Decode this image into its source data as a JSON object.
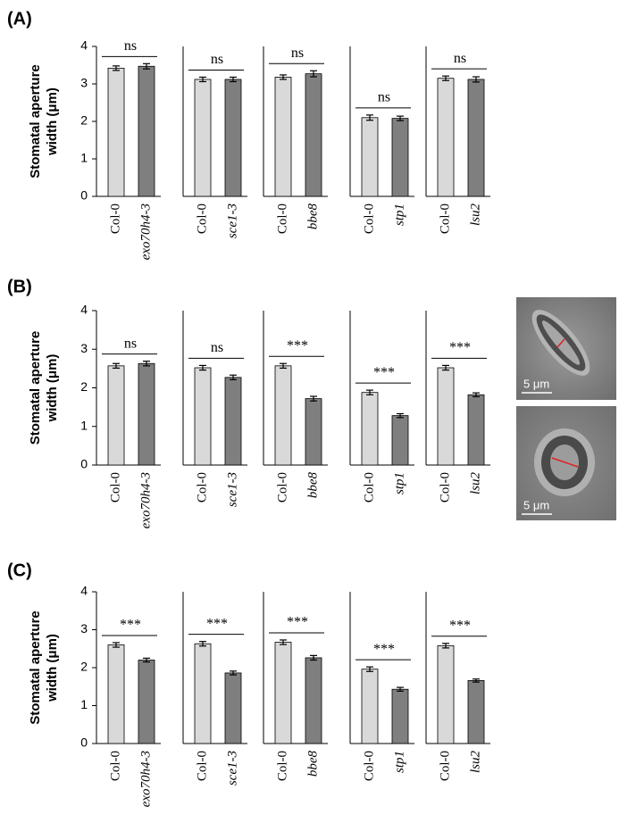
{
  "chart_data": [
    {
      "type": "bar",
      "panel_label": "(A)",
      "y_label": [
        "Stomatal aperture",
        "width (μm)"
      ],
      "categories": [
        "Col-0",
        "exo70h4-3"
      ],
      "values": [
        3.42,
        3.47
      ],
      "errors": [
        0.06,
        0.07
      ],
      "colors": [
        "#d9d9d9",
        "#7f7f7f"
      ],
      "significance": "ns",
      "ylim": [
        0,
        4
      ],
      "yticks": [
        0,
        1,
        2,
        3,
        4
      ]
    },
    {
      "type": "bar",
      "categories": [
        "Col-0",
        "sce1-3"
      ],
      "values": [
        3.12,
        3.12
      ],
      "errors": [
        0.06,
        0.06
      ],
      "colors": [
        "#d9d9d9",
        "#7f7f7f"
      ],
      "significance": "ns",
      "ylim": [
        0,
        4
      ]
    },
    {
      "type": "bar",
      "categories": [
        "Col-0",
        "bbe8"
      ],
      "values": [
        3.18,
        3.27
      ],
      "errors": [
        0.06,
        0.08
      ],
      "colors": [
        "#d9d9d9",
        "#7f7f7f"
      ],
      "significance": "ns",
      "ylim": [
        0,
        4
      ]
    },
    {
      "type": "bar",
      "categories": [
        "Col-0",
        "stp1"
      ],
      "values": [
        2.1,
        2.08
      ],
      "errors": [
        0.07,
        0.06
      ],
      "colors": [
        "#d9d9d9",
        "#7f7f7f"
      ],
      "significance": "ns",
      "ylim": [
        0,
        4
      ]
    },
    {
      "type": "bar",
      "categories": [
        "Col-0",
        "lsu2"
      ],
      "values": [
        3.15,
        3.12
      ],
      "errors": [
        0.06,
        0.07
      ],
      "colors": [
        "#d9d9d9",
        "#7f7f7f"
      ],
      "significance": "ns",
      "ylim": [
        0,
        4
      ]
    },
    {
      "type": "bar",
      "panel_label": "(B)",
      "y_label": [
        "Stomatal aperture",
        "width (μm)"
      ],
      "categories": [
        "Col-0",
        "exo70h4-3"
      ],
      "values": [
        2.57,
        2.63
      ],
      "errors": [
        0.06,
        0.06
      ],
      "colors": [
        "#d9d9d9",
        "#7f7f7f"
      ],
      "significance": "ns",
      "ylim": [
        0,
        4
      ],
      "yticks": [
        0,
        1,
        2,
        3,
        4
      ]
    },
    {
      "type": "bar",
      "categories": [
        "Col-0",
        "sce1-3"
      ],
      "values": [
        2.52,
        2.27
      ],
      "errors": [
        0.06,
        0.06
      ],
      "colors": [
        "#d9d9d9",
        "#7f7f7f"
      ],
      "significance": "ns",
      "ylim": [
        0,
        4
      ]
    },
    {
      "type": "bar",
      "categories": [
        "Col-0",
        "bbe8"
      ],
      "values": [
        2.57,
        1.72
      ],
      "errors": [
        0.06,
        0.06
      ],
      "colors": [
        "#d9d9d9",
        "#7f7f7f"
      ],
      "significance": "***",
      "ylim": [
        0,
        4
      ]
    },
    {
      "type": "bar",
      "categories": [
        "Col-0",
        "stp1"
      ],
      "values": [
        1.88,
        1.28
      ],
      "errors": [
        0.06,
        0.05
      ],
      "colors": [
        "#d9d9d9",
        "#7f7f7f"
      ],
      "significance": "***",
      "ylim": [
        0,
        4
      ]
    },
    {
      "type": "bar",
      "categories": [
        "Col-0",
        "lsu2"
      ],
      "values": [
        2.52,
        1.82
      ],
      "errors": [
        0.06,
        0.05
      ],
      "colors": [
        "#d9d9d9",
        "#7f7f7f"
      ],
      "significance": "***",
      "ylim": [
        0,
        4
      ]
    },
    {
      "type": "bar",
      "panel_label": "(C)",
      "y_label": [
        "Stomatal aperture",
        "width (μm)"
      ],
      "categories": [
        "Col-0",
        "exo70h4-3"
      ],
      "values": [
        2.6,
        2.2
      ],
      "errors": [
        0.06,
        0.05
      ],
      "colors": [
        "#d9d9d9",
        "#7f7f7f"
      ],
      "significance": "***",
      "ylim": [
        0,
        4
      ],
      "yticks": [
        0,
        1,
        2,
        3,
        4
      ]
    },
    {
      "type": "bar",
      "categories": [
        "Col-0",
        "sce1-3"
      ],
      "values": [
        2.63,
        1.86
      ],
      "errors": [
        0.06,
        0.05
      ],
      "colors": [
        "#d9d9d9",
        "#7f7f7f"
      ],
      "significance": "***",
      "ylim": [
        0,
        4
      ]
    },
    {
      "type": "bar",
      "categories": [
        "Col-0",
        "bbe8"
      ],
      "values": [
        2.67,
        2.26
      ],
      "errors": [
        0.06,
        0.06
      ],
      "colors": [
        "#d9d9d9",
        "#7f7f7f"
      ],
      "significance": "***",
      "ylim": [
        0,
        4
      ]
    },
    {
      "type": "bar",
      "categories": [
        "Col-0",
        "stp1"
      ],
      "values": [
        1.96,
        1.43
      ],
      "errors": [
        0.06,
        0.05
      ],
      "colors": [
        "#d9d9d9",
        "#7f7f7f"
      ],
      "significance": "***",
      "ylim": [
        0,
        4
      ]
    },
    {
      "type": "bar",
      "categories": [
        "Col-0",
        "lsu2"
      ],
      "values": [
        2.58,
        1.66
      ],
      "errors": [
        0.06,
        0.04
      ],
      "colors": [
        "#d9d9d9",
        "#7f7f7f"
      ],
      "significance": "***",
      "ylim": [
        0,
        4
      ]
    }
  ],
  "images": [
    {
      "scale_bar": "5 μm"
    },
    {
      "scale_bar": "5 μm"
    }
  ]
}
